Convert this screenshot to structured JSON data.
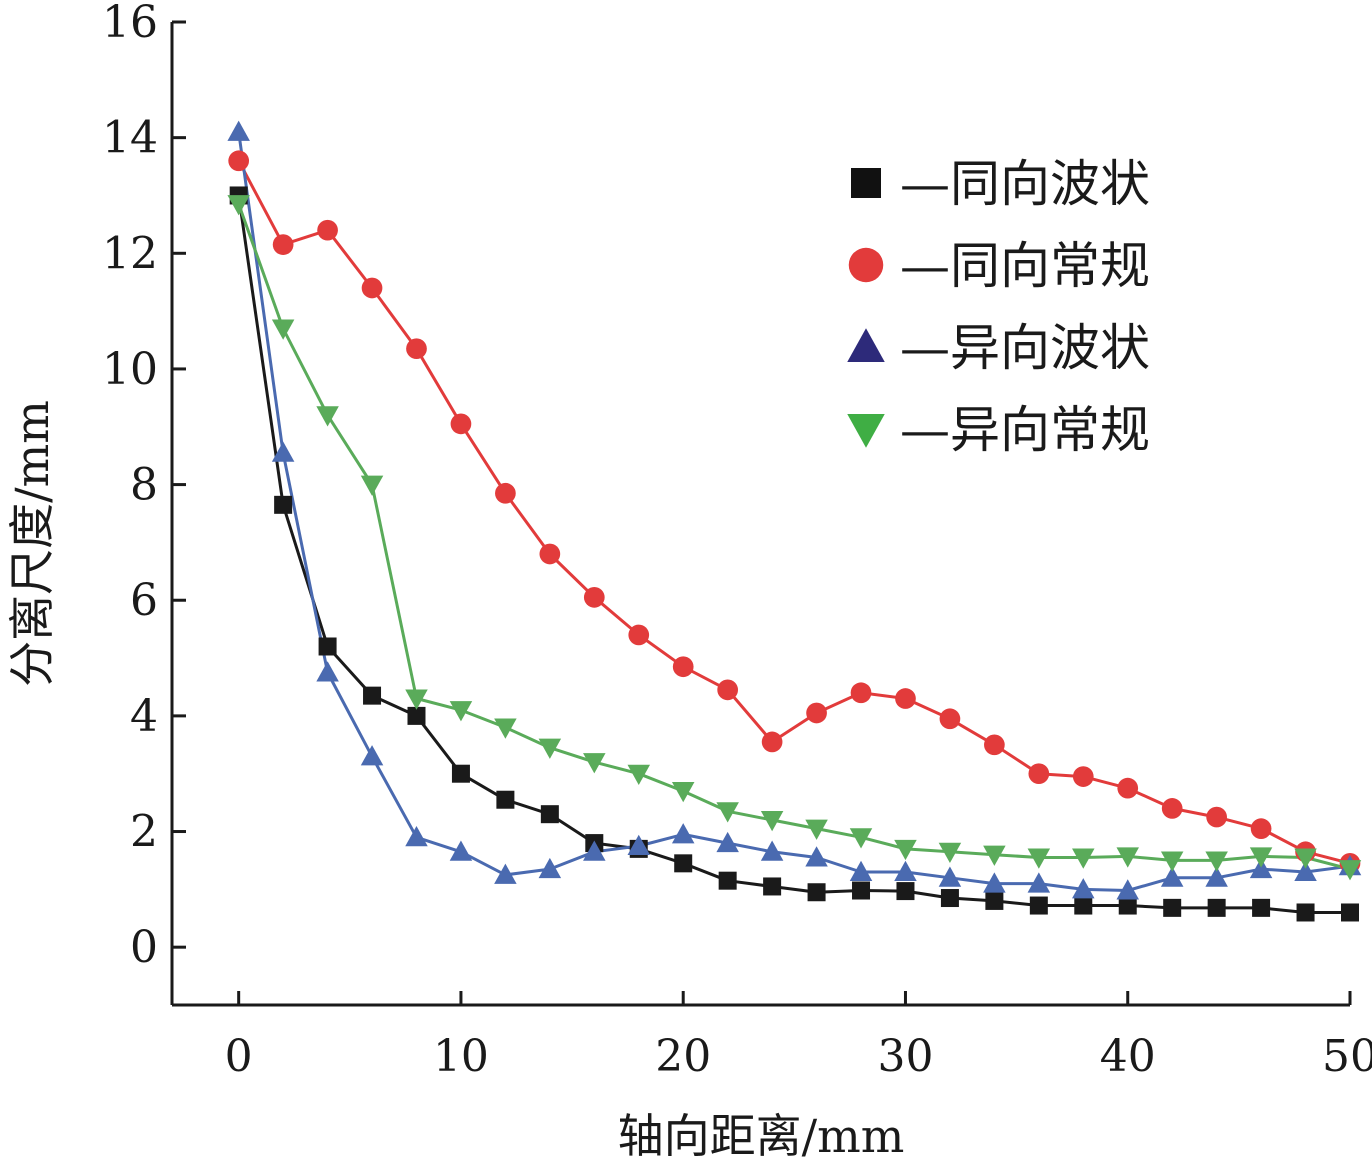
{
  "chart_data": {
    "type": "line",
    "xlabel": "轴向距离/mm",
    "ylabel": "分离尺度/mm",
    "xlim": [
      -3,
      50
    ],
    "ylim": [
      -1,
      16
    ],
    "xticks": [
      0,
      10,
      20,
      30,
      40,
      50
    ],
    "yticks": [
      0,
      2,
      4,
      6,
      8,
      10,
      12,
      14,
      16
    ],
    "grid": false,
    "legend_position": "top-right",
    "series": [
      {
        "name": "—同向波状",
        "color": "#1a1a1a",
        "marker": "square",
        "x": [
          0,
          2,
          4,
          6,
          8,
          10,
          12,
          14,
          16,
          18,
          20,
          22,
          24,
          26,
          28,
          30,
          32,
          34,
          36,
          38,
          40,
          42,
          44,
          46,
          48,
          50
        ],
        "y": [
          13.0,
          7.65,
          5.2,
          4.35,
          4.0,
          3.0,
          2.55,
          2.3,
          1.8,
          1.7,
          1.45,
          1.15,
          1.05,
          0.95,
          0.98,
          0.97,
          0.85,
          0.8,
          0.72,
          0.72,
          0.72,
          0.68,
          0.68,
          0.68,
          0.6,
          0.6
        ]
      },
      {
        "name": "—同向常规",
        "color": "#e23b3b",
        "marker": "circle",
        "x": [
          0,
          2,
          4,
          6,
          8,
          10,
          12,
          14,
          16,
          18,
          20,
          22,
          24,
          26,
          28,
          30,
          32,
          34,
          36,
          38,
          40,
          42,
          44,
          46,
          48,
          50
        ],
        "y": [
          13.6,
          12.15,
          12.4,
          11.4,
          10.35,
          9.05,
          7.85,
          6.8,
          6.05,
          5.4,
          4.85,
          4.45,
          3.55,
          4.05,
          4.4,
          4.3,
          3.95,
          3.5,
          3.0,
          2.95,
          2.75,
          2.4,
          2.25,
          2.05,
          1.65,
          1.45
        ]
      },
      {
        "name": "—异向波状",
        "color": "#4a6ab0",
        "marker": "triangle-up",
        "x": [
          0,
          2,
          4,
          6,
          8,
          10,
          12,
          14,
          16,
          18,
          20,
          22,
          24,
          26,
          28,
          30,
          32,
          34,
          36,
          38,
          40,
          42,
          44,
          46,
          48,
          50
        ],
        "y": [
          14.1,
          8.55,
          4.75,
          3.3,
          1.9,
          1.65,
          1.25,
          1.35,
          1.65,
          1.75,
          1.95,
          1.8,
          1.65,
          1.55,
          1.3,
          1.3,
          1.2,
          1.1,
          1.1,
          1.0,
          0.98,
          1.2,
          1.2,
          1.35,
          1.3,
          1.4
        ]
      },
      {
        "name": "—异向常规",
        "color": "#5aab5a",
        "marker": "triangle-down",
        "x": [
          0,
          2,
          4,
          6,
          8,
          10,
          12,
          14,
          16,
          18,
          20,
          22,
          24,
          26,
          28,
          30,
          32,
          34,
          36,
          38,
          40,
          42,
          44,
          46,
          48,
          50
        ],
        "y": [
          12.85,
          10.7,
          9.2,
          8.0,
          4.3,
          4.1,
          3.8,
          3.45,
          3.2,
          3.0,
          2.7,
          2.35,
          2.2,
          2.05,
          1.9,
          1.7,
          1.65,
          1.6,
          1.55,
          1.55,
          1.57,
          1.5,
          1.5,
          1.57,
          1.55,
          1.35
        ]
      }
    ]
  }
}
